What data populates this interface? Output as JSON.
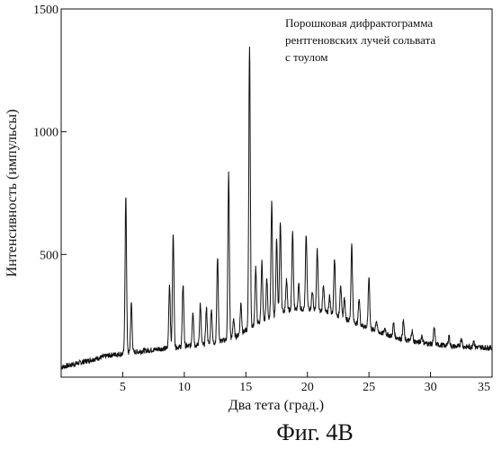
{
  "chart_data": {
    "type": "line",
    "xlabel": "Два тета (град.)",
    "ylabel": "Интенсивность (импульсы)",
    "xlim": [
      0,
      35
    ],
    "ylim": [
      0,
      1500
    ],
    "x_ticks": [
      5,
      10,
      15,
      20,
      25,
      30,
      35
    ],
    "y_ticks": [
      500,
      1000,
      1500
    ],
    "grid": false,
    "annotation": [
      "Порошковая дифрактограмма",
      "рентгеновских лучей сольвата",
      "с тоулом"
    ],
    "baseline": [
      [
        0,
        40
      ],
      [
        4,
        90
      ],
      [
        8,
        115
      ],
      [
        12,
        135
      ],
      [
        14,
        160
      ],
      [
        16,
        220
      ],
      [
        18,
        270
      ],
      [
        20,
        280
      ],
      [
        22,
        260
      ],
      [
        24,
        220
      ],
      [
        26,
        180
      ],
      [
        28,
        150
      ],
      [
        30,
        135
      ],
      [
        32,
        125
      ],
      [
        35,
        120
      ]
    ],
    "peaks": [
      {
        "x": 5.25,
        "y": 730
      },
      {
        "x": 5.7,
        "y": 300
      },
      {
        "x": 8.8,
        "y": 380
      },
      {
        "x": 9.1,
        "y": 590
      },
      {
        "x": 9.9,
        "y": 380
      },
      {
        "x": 10.7,
        "y": 270
      },
      {
        "x": 11.3,
        "y": 300
      },
      {
        "x": 11.8,
        "y": 280
      },
      {
        "x": 12.2,
        "y": 280
      },
      {
        "x": 12.7,
        "y": 490
      },
      {
        "x": 13.6,
        "y": 830
      },
      {
        "x": 14.0,
        "y": 240
      },
      {
        "x": 14.6,
        "y": 300
      },
      {
        "x": 15.3,
        "y": 1350
      },
      {
        "x": 15.8,
        "y": 450
      },
      {
        "x": 16.3,
        "y": 470
      },
      {
        "x": 16.7,
        "y": 400
      },
      {
        "x": 17.1,
        "y": 710
      },
      {
        "x": 17.5,
        "y": 560
      },
      {
        "x": 17.8,
        "y": 630
      },
      {
        "x": 18.3,
        "y": 400
      },
      {
        "x": 18.8,
        "y": 590
      },
      {
        "x": 19.3,
        "y": 380
      },
      {
        "x": 19.9,
        "y": 580
      },
      {
        "x": 20.4,
        "y": 350
      },
      {
        "x": 20.8,
        "y": 520
      },
      {
        "x": 21.3,
        "y": 380
      },
      {
        "x": 21.8,
        "y": 330
      },
      {
        "x": 22.2,
        "y": 490
      },
      {
        "x": 22.7,
        "y": 380
      },
      {
        "x": 23.0,
        "y": 320
      },
      {
        "x": 23.6,
        "y": 540
      },
      {
        "x": 24.2,
        "y": 320
      },
      {
        "x": 25.0,
        "y": 410
      },
      {
        "x": 25.6,
        "y": 230
      },
      {
        "x": 26.3,
        "y": 200
      },
      {
        "x": 27.0,
        "y": 220
      },
      {
        "x": 27.8,
        "y": 230
      },
      {
        "x": 28.5,
        "y": 190
      },
      {
        "x": 29.3,
        "y": 170
      },
      {
        "x": 30.3,
        "y": 200
      },
      {
        "x": 31.5,
        "y": 170
      },
      {
        "x": 32.5,
        "y": 160
      },
      {
        "x": 33.5,
        "y": 150
      }
    ]
  },
  "figure_caption": "Фиг. 4В"
}
